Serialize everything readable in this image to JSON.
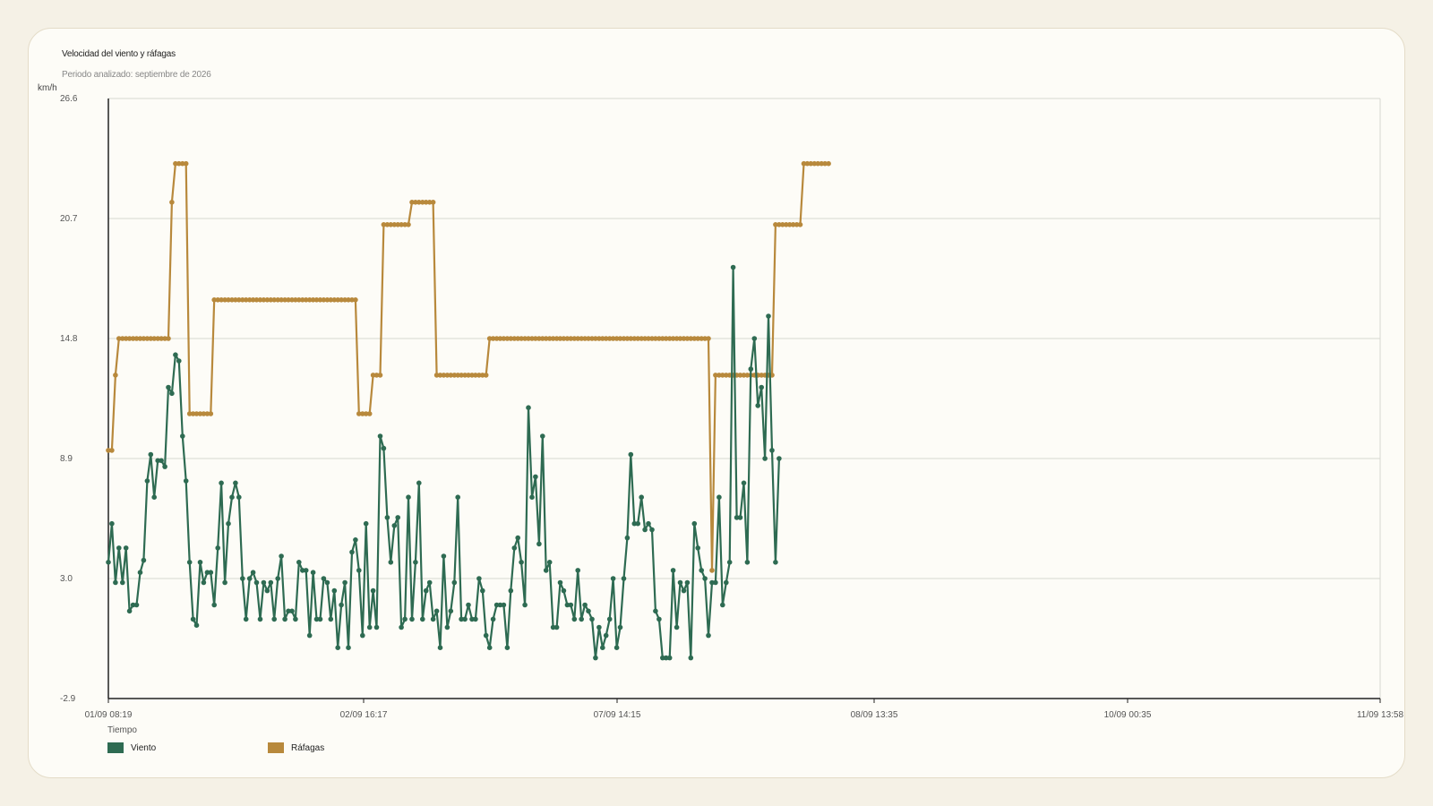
{
  "colors": {
    "background": "#f5f1e6",
    "card": "#fdfcf7",
    "wind": "#2e6b52",
    "gust": "#b8893c",
    "grid": "#d8d8d0",
    "axis": "#222222"
  },
  "header": {
    "title": "Velocidad del viento y ráfagas",
    "subtitle": "Periodo analizado: septiembre de 2026"
  },
  "chart_data": {
    "type": "line",
    "title": "Velocidad del viento y ráfagas",
    "subtitle": "Periodo analizado: septiembre de 2026",
    "xlabel": "Tiempo",
    "ylabel": "km/h",
    "ylim": [
      -2.9,
      26.6
    ],
    "yticks": [
      "-2.9",
      "3.0",
      "8.9",
      "14.8",
      "20.7",
      "26.6"
    ],
    "xticks": [
      "01/09 08:19",
      "02/09 16:17",
      "07/09 14:15",
      "08/09 13:35",
      "10/09 00:35",
      "11/09 13:58"
    ],
    "grid": true,
    "legend_position": "bottom-left",
    "x_points": 223,
    "series": [
      {
        "name": "Viento",
        "color": "#2e6b52",
        "values": [
          3.8,
          5.7,
          2.8,
          4.5,
          2.8,
          4.5,
          1.4,
          1.7,
          1.7,
          3.3,
          3.9,
          7.8,
          9.1,
          7.0,
          8.8,
          8.8,
          8.5,
          12.4,
          12.1,
          14.0,
          13.7,
          10.0,
          7.8,
          3.8,
          1.0,
          0.7,
          3.8,
          2.8,
          3.3,
          3.3,
          1.7,
          4.5,
          7.7,
          2.8,
          5.7,
          7.0,
          7.7,
          7.0,
          3.0,
          1.0,
          3.0,
          3.3,
          2.8,
          1.0,
          2.8,
          2.4,
          2.8,
          1.0,
          3.0,
          4.1,
          1.0,
          1.4,
          1.4,
          1.0,
          3.8,
          3.4,
          3.4,
          0.2,
          3.3,
          1.0,
          1.0,
          3.0,
          2.8,
          1.0,
          2.4,
          -0.4,
          1.7,
          2.8,
          -0.4,
          4.3,
          4.9,
          3.4,
          0.2,
          5.7,
          0.6,
          2.4,
          0.6,
          10.0,
          9.4,
          6.0,
          3.8,
          5.6,
          6.0,
          0.6,
          1.0,
          7.0,
          1.0,
          3.8,
          7.7,
          1.0,
          2.4,
          2.8,
          1.0,
          1.4,
          -0.4,
          4.1,
          0.6,
          1.4,
          2.8,
          7.0,
          1.0,
          1.0,
          1.7,
          1.0,
          1.0,
          3.0,
          2.4,
          0.2,
          -0.4,
          1.0,
          1.7,
          1.7,
          1.7,
          -0.4,
          2.4,
          4.5,
          5.0,
          3.8,
          1.7,
          11.4,
          7.0,
          8.0,
          4.7,
          10.0,
          3.4,
          3.8,
          0.6,
          0.6,
          2.8,
          2.4,
          1.7,
          1.7,
          1.0,
          3.4,
          1.0,
          1.7,
          1.4,
          1.0,
          -0.9,
          0.6,
          -0.4,
          0.2,
          1.0,
          3.0,
          -0.4,
          0.6,
          3.0,
          5.0,
          9.1,
          5.7,
          5.7,
          7.0,
          5.4,
          5.7,
          5.4,
          1.4,
          1.0,
          -0.9,
          -0.9,
          -0.9,
          3.4,
          0.6,
          2.8,
          2.4,
          2.8,
          -0.9,
          5.7,
          4.5,
          3.4,
          3.0,
          0.2,
          2.8,
          2.8,
          7.0,
          1.7,
          2.8,
          3.8,
          18.3,
          6.0,
          6.0,
          7.7,
          3.8,
          13.3,
          14.8,
          11.5,
          12.4,
          8.9,
          15.9,
          9.3,
          3.8,
          8.9
        ],
        "index_offset": 0
      },
      {
        "name": "Ráfagas",
        "color": "#b8893c",
        "values": [
          9.3,
          9.3,
          13.0,
          14.8,
          14.8,
          14.8,
          14.8,
          14.8,
          14.8,
          14.8,
          14.8,
          14.8,
          14.8,
          14.8,
          14.8,
          14.8,
          14.8,
          14.8,
          21.5,
          23.4,
          23.4,
          23.4,
          23.4,
          11.1,
          11.1,
          11.1,
          11.1,
          11.1,
          11.1,
          11.1,
          16.7,
          16.7,
          16.7,
          16.7,
          16.7,
          16.7,
          16.7,
          16.7,
          16.7,
          16.7,
          16.7,
          16.7,
          16.7,
          16.7,
          16.7,
          16.7,
          16.7,
          16.7,
          16.7,
          16.7,
          16.7,
          16.7,
          16.7,
          16.7,
          16.7,
          16.7,
          16.7,
          16.7,
          16.7,
          16.7,
          16.7,
          16.7,
          16.7,
          16.7,
          16.7,
          16.7,
          16.7,
          16.7,
          16.7,
          16.7,
          16.7,
          11.1,
          11.1,
          11.1,
          11.1,
          13.0,
          13.0,
          13.0,
          20.4,
          20.4,
          20.4,
          20.4,
          20.4,
          20.4,
          20.4,
          20.4,
          21.5,
          21.5,
          21.5,
          21.5,
          21.5,
          21.5,
          21.5,
          13.0,
          13.0,
          13.0,
          13.0,
          13.0,
          13.0,
          13.0,
          13.0,
          13.0,
          13.0,
          13.0,
          13.0,
          13.0,
          13.0,
          13.0,
          14.8,
          14.8,
          14.8,
          14.8,
          14.8,
          14.8,
          14.8,
          14.8,
          14.8,
          14.8,
          14.8,
          14.8,
          14.8,
          14.8,
          14.8,
          14.8,
          14.8,
          14.8,
          14.8,
          14.8,
          14.8,
          14.8,
          14.8,
          14.8,
          14.8,
          14.8,
          14.8,
          14.8,
          14.8,
          14.8,
          14.8,
          14.8,
          14.8,
          14.8,
          14.8,
          14.8,
          14.8,
          14.8,
          14.8,
          14.8,
          14.8,
          14.8,
          14.8,
          14.8,
          14.8,
          14.8,
          14.8,
          14.8,
          14.8,
          14.8,
          14.8,
          14.8,
          14.8,
          14.8,
          14.8,
          14.8,
          14.8,
          14.8,
          14.8,
          14.8,
          14.8,
          14.8,
          14.8,
          3.4,
          13.0,
          13.0,
          13.0,
          13.0,
          13.0,
          13.0,
          13.0,
          13.0,
          13.0,
          13.0,
          13.0,
          13.0,
          13.0,
          13.0,
          13.0,
          13.0,
          13.0,
          20.4,
          20.4,
          20.4,
          20.4,
          20.4,
          20.4,
          20.4,
          20.4,
          23.4,
          23.4,
          23.4,
          23.4,
          23.4,
          23.4,
          23.4,
          23.4
        ],
        "index_offset": 0
      }
    ]
  }
}
